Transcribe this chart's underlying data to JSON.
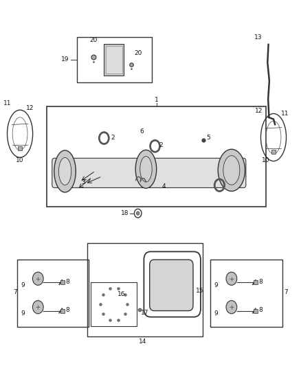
{
  "bg_color": "#ffffff",
  "line_color": "#333333",
  "fig_width": 4.38,
  "fig_height": 5.33
}
